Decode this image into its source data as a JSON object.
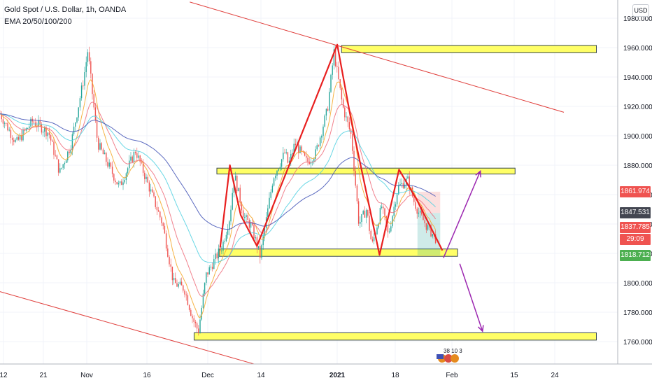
{
  "header": {
    "title": "Gold Spot / U.S. Dollar, 1h, OANDA",
    "indicator": "EMA 20/50/100/200"
  },
  "currency_button": "USD",
  "price_labels": [
    {
      "text": "1861.974",
      "value": 1861.974,
      "color": "#ef5350"
    },
    {
      "text": "1847.531",
      "value": 1847.531,
      "color": "#434651"
    },
    {
      "text": "1837.785",
      "value": 1837.785,
      "color": "#ef5350"
    },
    {
      "text": "29:09",
      "value": 1829.6,
      "color": "#ef5350"
    },
    {
      "text": "1818.712",
      "value": 1818.712,
      "color": "#4caf50"
    }
  ],
  "event_badge": "38 10 3",
  "colors": {
    "up": "#26a69a",
    "down": "#ef5350",
    "zone": "#ffff66",
    "pattern": "#e81f1f",
    "channel": "#e0403d",
    "projection": "#9c27b0"
  },
  "chart_data": {
    "type": "candlestick",
    "title": "Gold Spot / U.S. Dollar, 1h, OANDA",
    "indicators": [
      "EMA 20",
      "EMA 50",
      "EMA 100",
      "EMA 200"
    ],
    "ylim": [
      1737,
      1982
    ],
    "y_ticks": [
      "1760.000",
      "1780.000",
      "1800.000",
      "1820.000",
      "1840.000",
      "1860.000",
      "1880.000",
      "1900.000",
      "1920.000",
      "1940.000",
      "1960.000",
      "1980.000"
    ],
    "x_ticks": [
      "12",
      "21",
      "Nov",
      "16",
      "Dec",
      "14",
      "2021",
      "18",
      "Feb",
      "15",
      "24"
    ],
    "trend": [
      {
        "t": 0,
        "p": 1915
      },
      {
        "t": 1.5,
        "p": 1895
      },
      {
        "t": 3,
        "p": 1910
      },
      {
        "t": 4.5,
        "p": 1902
      },
      {
        "t": 5.5,
        "p": 1875
      },
      {
        "t": 6.5,
        "p": 1893
      },
      {
        "t": 7.7,
        "p": 1938
      },
      {
        "t": 8.1,
        "p": 1958
      },
      {
        "t": 9,
        "p": 1895
      },
      {
        "t": 10,
        "p": 1880
      },
      {
        "t": 11,
        "p": 1865
      },
      {
        "t": 12.5,
        "p": 1890
      },
      {
        "t": 13.5,
        "p": 1870
      },
      {
        "t": 15,
        "p": 1840
      },
      {
        "t": 16,
        "p": 1800
      },
      {
        "t": 17,
        "p": 1796
      },
      {
        "t": 17.8,
        "p": 1775
      },
      {
        "t": 18.3,
        "p": 1767
      },
      {
        "t": 19,
        "p": 1805
      },
      {
        "t": 20.5,
        "p": 1825
      },
      {
        "t": 21.2,
        "p": 1845
      },
      {
        "t": 21.6,
        "p": 1874
      },
      {
        "t": 22.5,
        "p": 1845
      },
      {
        "t": 23.2,
        "p": 1838
      },
      {
        "t": 24,
        "p": 1818
      },
      {
        "t": 25.2,
        "p": 1872
      },
      {
        "t": 26.3,
        "p": 1889
      },
      {
        "t": 26.6,
        "p": 1880
      },
      {
        "t": 27.2,
        "p": 1895
      },
      {
        "t": 28.3,
        "p": 1882
      },
      {
        "t": 29.1,
        "p": 1888
      },
      {
        "t": 30.2,
        "p": 1918
      },
      {
        "t": 30.8,
        "p": 1957
      },
      {
        "t": 31.6,
        "p": 1920
      },
      {
        "t": 32.4,
        "p": 1900
      },
      {
        "t": 33.1,
        "p": 1840
      },
      {
        "t": 33.8,
        "p": 1850
      },
      {
        "t": 34.3,
        "p": 1825
      },
      {
        "t": 35.2,
        "p": 1852
      },
      {
        "t": 35.8,
        "p": 1832
      },
      {
        "t": 36.7,
        "p": 1865
      },
      {
        "t": 37.6,
        "p": 1870
      },
      {
        "t": 38.2,
        "p": 1855
      },
      {
        "t": 38.6,
        "p": 1848
      },
      {
        "t": 39.4,
        "p": 1838
      },
      {
        "t": 40.2,
        "p": 1830
      }
    ],
    "zones": [
      {
        "from_t": 31.5,
        "to_t": 55,
        "top": 1961.5,
        "bottom": 1956.5
      },
      {
        "from_t": 20,
        "to_t": 47.5,
        "top": 1878,
        "bottom": 1874
      },
      {
        "from_t": 20.2,
        "to_t": 42.2,
        "top": 1823,
        "bottom": 1818
      },
      {
        "from_t": 17.9,
        "to_t": 55,
        "top": 1766,
        "bottom": 1761
      }
    ],
    "pattern_lines": [
      [
        {
          "t": 20.3,
          "p": 1824
        },
        {
          "t": 21.2,
          "p": 1880
        },
        {
          "t": 22.2,
          "p": 1846
        },
        {
          "t": 23.7,
          "p": 1825
        },
        {
          "t": 31.1,
          "p": 1962
        },
        {
          "t": 32.4,
          "p": 1910
        },
        {
          "t": 35,
          "p": 1819
        },
        {
          "t": 36.8,
          "p": 1877
        },
        {
          "t": 38.4,
          "p": 1857
        },
        {
          "t": 40.8,
          "p": 1822
        }
      ]
    ],
    "channel_lines": [
      [
        {
          "t": 17.5,
          "p": 1991
        },
        {
          "t": 52,
          "p": 1916
        }
      ],
      [
        {
          "t": 0,
          "p": 1794
        },
        {
          "t": 25.7,
          "p": 1740
        }
      ]
    ],
    "projection_arrows": [
      [
        {
          "t": 40.9,
          "p": 1817
        },
        {
          "t": 44.3,
          "p": 1876
        }
      ],
      [
        {
          "t": 42.4,
          "p": 1813
        },
        {
          "t": 44.5,
          "p": 1767
        }
      ]
    ],
    "position_tool": {
      "from_t": 38.5,
      "to_t": 40.6,
      "stop": 1861.974,
      "entry": 1847.531,
      "target": 1818.712
    }
  }
}
